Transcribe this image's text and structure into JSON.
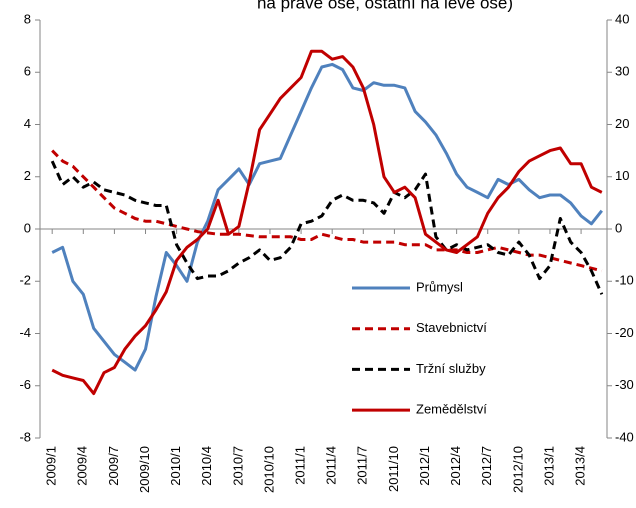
{
  "chart_data": {
    "type": "line",
    "title": "na pravé ose, ostatní na levé ose)",
    "categories": [
      "2009/1",
      null,
      null,
      "2009/4",
      null,
      null,
      "2009/7",
      null,
      null,
      "2009/10",
      null,
      null,
      "2010/1",
      null,
      null,
      "2010/4",
      null,
      null,
      "2010/7",
      null,
      null,
      "2010/10",
      null,
      null,
      "2011/1",
      null,
      null,
      "2011/4",
      null,
      null,
      "2011/7",
      null,
      null,
      "2011/10",
      null,
      null,
      "2012/1",
      null,
      null,
      "2012/4",
      null,
      null,
      "2012/7",
      null,
      null,
      "2012/10",
      null,
      null,
      "2013/1",
      null,
      null,
      "2013/4",
      null,
      null
    ],
    "series": [
      {
        "name": "Průmysl",
        "color": "#4f81bd",
        "style": "solid",
        "axis": "y",
        "values": [
          -0.9,
          -0.7,
          -2.0,
          -2.5,
          -3.8,
          -4.3,
          -4.8,
          -5.1,
          -5.4,
          -4.6,
          -2.6,
          -0.9,
          -1.4,
          -2.0,
          -0.5,
          0.3,
          1.5,
          1.9,
          2.3,
          1.7,
          2.5,
          2.6,
          2.7,
          3.6,
          4.5,
          5.4,
          6.2,
          6.3,
          6.1,
          5.4,
          5.3,
          5.6,
          5.5,
          5.5,
          5.4,
          4.5,
          4.1,
          3.6,
          2.9,
          2.1,
          1.6,
          1.4,
          1.2,
          1.9,
          1.7,
          1.9,
          1.5,
          1.2,
          1.3,
          1.3,
          1.0,
          0.5,
          0.2,
          0.7
        ]
      },
      {
        "name": "Stavebnictví",
        "color": "#c00000",
        "style": "dashed",
        "axis": "y",
        "values": [
          3,
          2.6,
          2.4,
          2,
          1.6,
          1.2,
          0.8,
          0.6,
          0.4,
          0.3,
          0.3,
          0.2,
          0.1,
          0,
          -0.1,
          -0.15,
          -0.2,
          -0.2,
          -0.2,
          -0.25,
          -0.3,
          -0.3,
          -0.3,
          -0.3,
          -0.4,
          -0.4,
          -0.2,
          -0.3,
          -0.4,
          -0.4,
          -0.5,
          -0.5,
          -0.5,
          -0.5,
          -0.6,
          -0.6,
          -0.6,
          -0.8,
          -0.8,
          -0.8,
          -0.9,
          -0.9,
          -0.8,
          -0.7,
          -0.8,
          -0.9,
          -1.0,
          -1.0,
          -1.1,
          -1.2,
          -1.3,
          -1.4,
          -1.5,
          -1.6
        ]
      },
      {
        "name": "Tržní služby",
        "color": "#000000",
        "style": "dashed",
        "axis": "y",
        "values": [
          2.6,
          1.7,
          2.0,
          1.6,
          1.8,
          1.5,
          1.4,
          1.3,
          1.1,
          1.0,
          0.9,
          0.9,
          -0.6,
          -1.3,
          -1.9,
          -1.8,
          -1.8,
          -1.6,
          -1.3,
          -1.1,
          -0.8,
          -1.2,
          -1.1,
          -0.7,
          0.2,
          0.3,
          0.5,
          1.1,
          1.3,
          1.1,
          1.1,
          1.0,
          0.6,
          1.4,
          1.2,
          1.5,
          2.1,
          -0.3,
          -0.8,
          -0.6,
          -0.8,
          -0.7,
          -0.6,
          -0.9,
          -1.0,
          -0.5,
          -1.0,
          -1.9,
          -1.4,
          0.4,
          -0.5,
          -0.9,
          -1.6,
          -2.5
        ]
      },
      {
        "name": "Zemědělství",
        "color": "#c00000",
        "style": "solid",
        "axis": "y2",
        "values": [
          -27,
          -28,
          -28.5,
          -29,
          -31.5,
          -27.5,
          -26.5,
          -23,
          -20.5,
          -18.5,
          -15.5,
          -12,
          -6,
          -3.5,
          -2,
          0,
          5.5,
          -1,
          0.5,
          9,
          19,
          22,
          25,
          27,
          29,
          34,
          34,
          32.5,
          33,
          31,
          27,
          20,
          10,
          7,
          8,
          6,
          -1,
          -2.5,
          -4,
          -4.5,
          -3,
          -1.5,
          3,
          6,
          8,
          11,
          13,
          14,
          15,
          15.5,
          12.5,
          12.5,
          8,
          7
        ]
      }
    ],
    "ylim": [
      -8,
      8
    ],
    "yticks": [
      -8,
      -6,
      -4,
      -2,
      0,
      2,
      4,
      6,
      8
    ],
    "y2lim": [
      -40,
      40
    ],
    "y2ticks": [
      -40,
      -30,
      -20,
      -10,
      0,
      10,
      20,
      30,
      40
    ],
    "grid": false
  }
}
